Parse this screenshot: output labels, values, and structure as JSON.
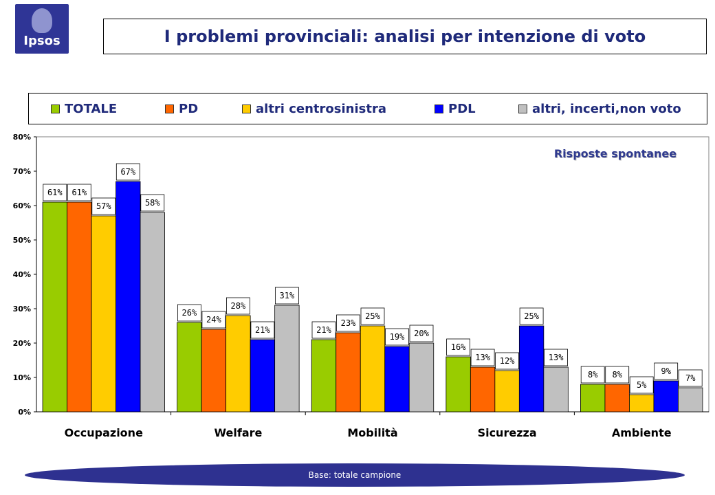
{
  "logo": {
    "text": "Ipsos"
  },
  "title": "I problemi provinciali: analisi per intenzione di voto",
  "note": "Risposte spontanee",
  "footer": "Base: totale campione",
  "colors": {
    "TOTALE": "#99cc00",
    "PD": "#ff6600",
    "altri_centrosinistra": "#ffcc00",
    "PDL": "#0000ff",
    "altri_incerti": "#c0c0c0",
    "title_text": "#1f2a7a",
    "footer_bg": "#2e3190"
  },
  "chart_data": {
    "type": "bar",
    "categories": [
      "Occupazione",
      "Welfare",
      "Mobilità",
      "Sicurezza",
      "Ambiente"
    ],
    "series": [
      {
        "name": "TOTALE",
        "color": "#99cc00",
        "values": [
          61,
          26,
          21,
          16,
          8
        ]
      },
      {
        "name": "PD",
        "color": "#ff6600",
        "values": [
          61,
          24,
          23,
          13,
          8
        ]
      },
      {
        "name": "altri centrosinistra",
        "color": "#ffcc00",
        "values": [
          57,
          28,
          25,
          12,
          5
        ]
      },
      {
        "name": "PDL",
        "color": "#0000ff",
        "values": [
          67,
          21,
          19,
          25,
          9
        ]
      },
      {
        "name": "altri, incerti,non voto",
        "color": "#c0c0c0",
        "values": [
          58,
          31,
          20,
          13,
          7
        ]
      }
    ],
    "ylim": [
      0,
      80
    ],
    "yticks": [
      "0%",
      "10%",
      "20%",
      "30%",
      "40%",
      "50%",
      "60%",
      "70%",
      "80%"
    ],
    "value_suffix": "%",
    "legend_position": "top",
    "grid": false
  }
}
